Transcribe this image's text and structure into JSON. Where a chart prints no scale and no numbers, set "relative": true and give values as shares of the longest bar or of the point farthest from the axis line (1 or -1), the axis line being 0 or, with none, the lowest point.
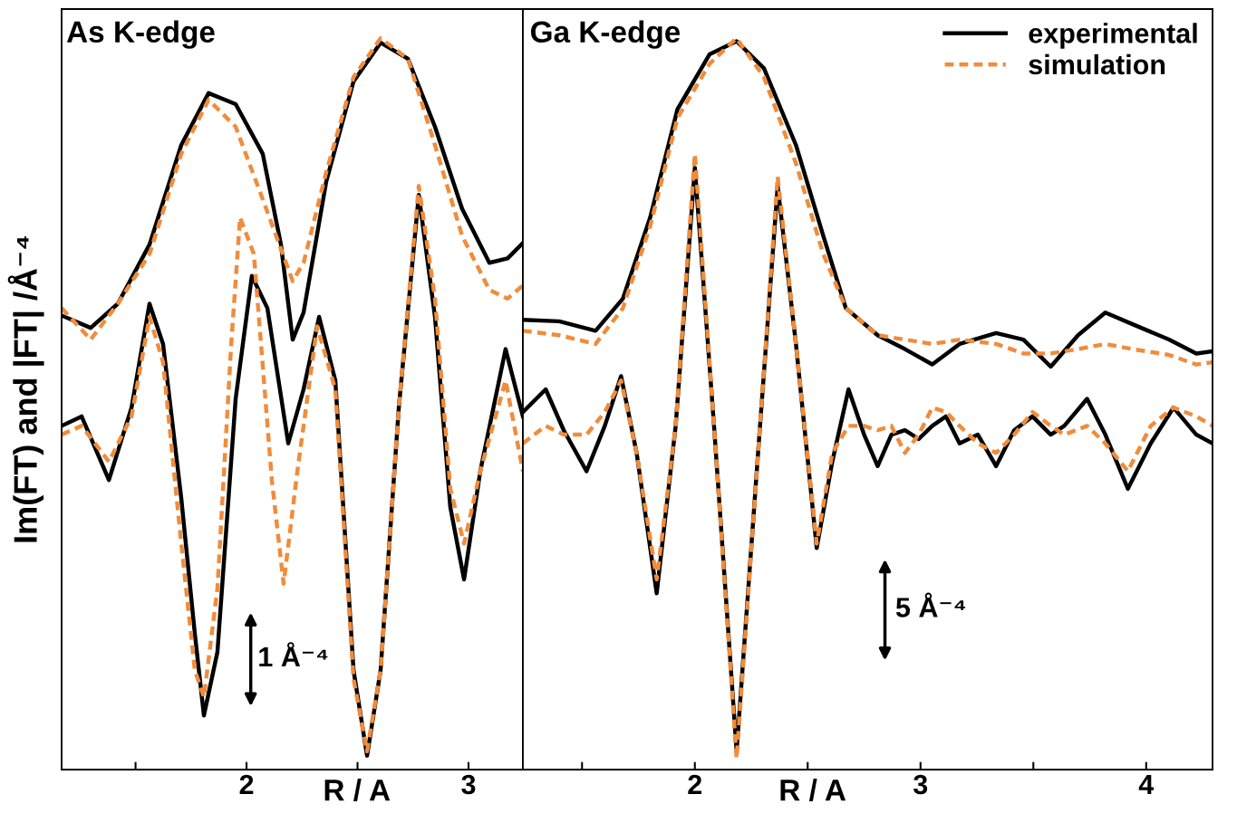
{
  "chart_data": [
    {
      "type": "line",
      "relative": true,
      "title": "As K-edge",
      "xlabel": "R / A",
      "ylabel": "Im(FT) and |FT| /Å⁻⁴",
      "xlim": [
        1.167,
        3.245
      ],
      "xticks": [
        {
          "value": 1.5,
          "label": null
        },
        2,
        {
          "value": 2.5,
          "label": null
        },
        3
      ],
      "tick_labels": "x",
      "grid": false,
      "legend": false,
      "annotations": [
        "1 Å⁻⁴"
      ],
      "series": [
        {
          "color": "#000000",
          "line_style": "solid",
          "x": [
            1.167,
            1.298,
            1.42,
            1.563,
            1.706,
            1.829,
            1.951,
            2.073,
            2.155,
            2.208,
            2.257,
            2.359,
            2.482,
            2.604,
            2.727,
            2.849,
            2.971,
            3.094,
            3.176,
            3.245
          ],
          "values": [
            0.621,
            0.604,
            0.637,
            0.718,
            0.854,
            0.925,
            0.91,
            0.842,
            0.718,
            0.588,
            0.625,
            0.804,
            0.941,
            0.994,
            0.972,
            0.879,
            0.767,
            0.693,
            0.699,
            0.72
          ]
        },
        {
          "color": "#f08c3c",
          "line_style": "dashed",
          "x": [
            1.167,
            1.298,
            1.42,
            1.563,
            1.706,
            1.829,
            1.951,
            2.073,
            2.155,
            2.208,
            2.257,
            2.359,
            2.482,
            2.604,
            2.727,
            2.849,
            2.971,
            3.094,
            3.176,
            3.245
          ],
          "values": [
            0.631,
            0.588,
            0.637,
            0.705,
            0.842,
            0.916,
            0.879,
            0.78,
            0.712,
            0.668,
            0.693,
            0.817,
            0.947,
            1.0,
            0.972,
            0.854,
            0.73,
            0.656,
            0.644,
            0.662
          ]
        },
        {
          "color": "#000000",
          "line_style": "solid",
          "x": [
            1.167,
            1.257,
            1.38,
            1.482,
            1.563,
            1.624,
            1.706,
            1.767,
            1.808,
            1.869,
            1.951,
            2.024,
            2.094,
            2.188,
            2.257,
            2.327,
            2.4,
            2.482,
            2.543,
            2.604,
            2.686,
            2.776,
            2.849,
            2.918,
            2.98,
            3.053,
            3.167,
            3.245
          ],
          "values": [
            0.47,
            0.483,
            0.396,
            0.495,
            0.637,
            0.582,
            0.371,
            0.186,
            0.074,
            0.161,
            0.507,
            0.675,
            0.631,
            0.446,
            0.52,
            0.619,
            0.532,
            0.136,
            0.019,
            0.136,
            0.495,
            0.786,
            0.619,
            0.359,
            0.26,
            0.408,
            0.575,
            0.483
          ]
        },
        {
          "color": "#f08c3c",
          "line_style": "dashed",
          "x": [
            1.167,
            1.257,
            1.38,
            1.482,
            1.563,
            1.624,
            1.706,
            1.767,
            1.808,
            1.869,
            1.931,
            1.971,
            2.033,
            2.114,
            2.167,
            2.229,
            2.318,
            2.4,
            2.482,
            2.543,
            2.604,
            2.686,
            2.776,
            2.849,
            2.918,
            2.98,
            3.053,
            3.167,
            3.245
          ],
          "values": [
            0.458,
            0.47,
            0.421,
            0.483,
            0.619,
            0.557,
            0.309,
            0.136,
            0.099,
            0.248,
            0.582,
            0.755,
            0.705,
            0.396,
            0.254,
            0.408,
            0.606,
            0.52,
            0.124,
            0.025,
            0.136,
            0.495,
            0.798,
            0.644,
            0.384,
            0.309,
            0.408,
            0.532,
            0.408
          ]
        }
      ]
    },
    {
      "type": "line",
      "relative": true,
      "title": "Ga K-edge",
      "xlabel": "R / A",
      "xlim": [
        1.238,
        4.294
      ],
      "xticks": [
        {
          "value": 1.5,
          "label": null
        },
        2,
        {
          "value": 2.5,
          "label": null
        },
        3,
        {
          "value": 3.5,
          "label": null
        },
        4
      ],
      "tick_labels": "x",
      "grid": false,
      "legend": "top right",
      "annotations": [
        "5 Å⁻⁴"
      ],
      "series": [
        {
          "name": "experimental",
          "color": "#000000",
          "line_style": "solid",
          "x": [
            1.238,
            1.399,
            1.56,
            1.681,
            1.802,
            1.923,
            2.065,
            2.185,
            2.306,
            2.448,
            2.569,
            2.669,
            2.81,
            2.931,
            3.052,
            3.173,
            3.335,
            3.456,
            3.577,
            3.698,
            3.819,
            3.94,
            4.101,
            4.222,
            4.294
          ],
          "values": [
            0.615,
            0.613,
            0.6,
            0.644,
            0.755,
            0.903,
            0.978,
            0.996,
            0.959,
            0.854,
            0.73,
            0.631,
            0.594,
            0.575,
            0.554,
            0.582,
            0.597,
            0.588,
            0.551,
            0.594,
            0.625,
            0.609,
            0.588,
            0.569,
            0.572
          ]
        },
        {
          "name": "simulation",
          "color": "#f08c3c",
          "line_style": "dashed",
          "x": [
            1.238,
            1.399,
            1.56,
            1.681,
            1.802,
            1.923,
            2.065,
            2.185,
            2.306,
            2.448,
            2.569,
            2.669,
            2.81,
            2.931,
            3.052,
            3.173,
            3.335,
            3.456,
            3.577,
            3.698,
            3.819,
            3.94,
            4.101,
            4.222,
            4.294
          ],
          "values": [
            0.6,
            0.594,
            0.582,
            0.631,
            0.743,
            0.891,
            0.965,
            1.0,
            0.947,
            0.829,
            0.705,
            0.631,
            0.594,
            0.588,
            0.582,
            0.588,
            0.582,
            0.569,
            0.569,
            0.575,
            0.582,
            0.575,
            0.567,
            0.554,
            0.557
          ]
        },
        {
          "color": "#000000",
          "line_style": "solid",
          "x": [
            1.238,
            1.339,
            1.419,
            1.52,
            1.601,
            1.673,
            1.742,
            1.831,
            1.915,
            2.0,
            2.085,
            2.185,
            2.286,
            2.367,
            2.448,
            2.54,
            2.609,
            2.681,
            2.75,
            2.81,
            2.871,
            2.931,
            2.992,
            3.052,
            3.113,
            3.173,
            3.254,
            3.335,
            3.415,
            3.496,
            3.577,
            3.637,
            3.738,
            3.819,
            3.919,
            4.02,
            4.121,
            4.222,
            4.294
          ],
          "values": [
            0.489,
            0.52,
            0.464,
            0.408,
            0.47,
            0.538,
            0.433,
            0.241,
            0.47,
            0.823,
            0.47,
            0.025,
            0.458,
            0.798,
            0.582,
            0.303,
            0.421,
            0.52,
            0.458,
            0.415,
            0.458,
            0.464,
            0.452,
            0.47,
            0.483,
            0.446,
            0.458,
            0.415,
            0.464,
            0.483,
            0.458,
            0.47,
            0.507,
            0.458,
            0.384,
            0.446,
            0.495,
            0.458,
            0.446
          ]
        },
        {
          "color": "#f08c3c",
          "line_style": "dashed",
          "x": [
            1.238,
            1.339,
            1.419,
            1.52,
            1.601,
            1.673,
            1.742,
            1.831,
            1.915,
            2.0,
            2.085,
            2.185,
            2.286,
            2.367,
            2.448,
            2.54,
            2.609,
            2.681,
            2.75,
            2.81,
            2.871,
            2.931,
            2.992,
            3.052,
            3.113,
            3.173,
            3.254,
            3.335,
            3.415,
            3.496,
            3.577,
            3.637,
            3.738,
            3.819,
            3.919,
            4.02,
            4.121,
            4.222,
            4.294
          ],
          "values": [
            0.446,
            0.47,
            0.458,
            0.458,
            0.489,
            0.532,
            0.433,
            0.26,
            0.47,
            0.842,
            0.47,
            0.015,
            0.458,
            0.811,
            0.582,
            0.309,
            0.433,
            0.47,
            0.47,
            0.464,
            0.47,
            0.433,
            0.458,
            0.495,
            0.489,
            0.47,
            0.446,
            0.433,
            0.458,
            0.489,
            0.47,
            0.458,
            0.47,
            0.446,
            0.408,
            0.47,
            0.495,
            0.483,
            0.47
          ]
        }
      ]
    }
  ]
}
